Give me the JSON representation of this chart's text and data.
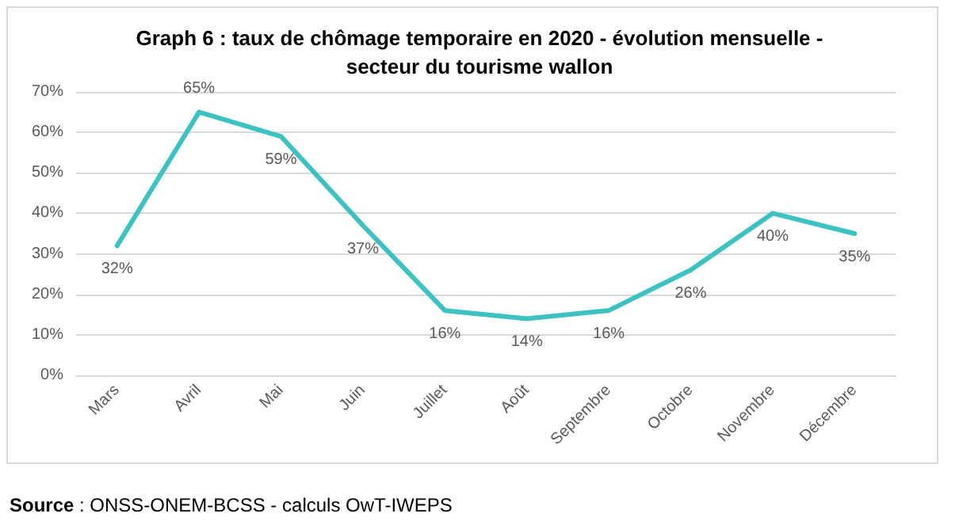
{
  "chart_data": {
    "type": "line",
    "title": "Graph 6 : taux de chômage temporaire en 2020 - évolution mensuelle -\nsecteur du tourisme wallon",
    "categories": [
      "Mars",
      "Avril",
      "Mai",
      "Juin",
      "Juillet",
      "Août",
      "Septembre",
      "Octobre",
      "Novembre",
      "Décembre"
    ],
    "series": [
      {
        "color": "#3ec1c1",
        "values": [
          32,
          65,
          59,
          37,
          16,
          14,
          16,
          26,
          40,
          35
        ],
        "value_labels": [
          "32%",
          "65%",
          "59%",
          "37%",
          "16%",
          "14%",
          "16%",
          "26%",
          "40%",
          "35%"
        ]
      }
    ],
    "ylim": [
      0,
      70
    ],
    "yticks": [
      {
        "value": 0,
        "label": "0%"
      },
      {
        "value": 10,
        "label": "10%"
      },
      {
        "value": 20,
        "label": "20%"
      },
      {
        "value": 30,
        "label": "30%"
      },
      {
        "value": 40,
        "label": "40%"
      },
      {
        "value": 50,
        "label": "50%"
      },
      {
        "value": 60,
        "label": "60%"
      },
      {
        "value": 70,
        "label": "70%"
      }
    ],
    "grid": "y",
    "marker": "none",
    "line_style": "solid",
    "annotations": [
      "Source : ONSS-ONEM-BCSS - calculs OwT-IWEPS"
    ]
  }
}
